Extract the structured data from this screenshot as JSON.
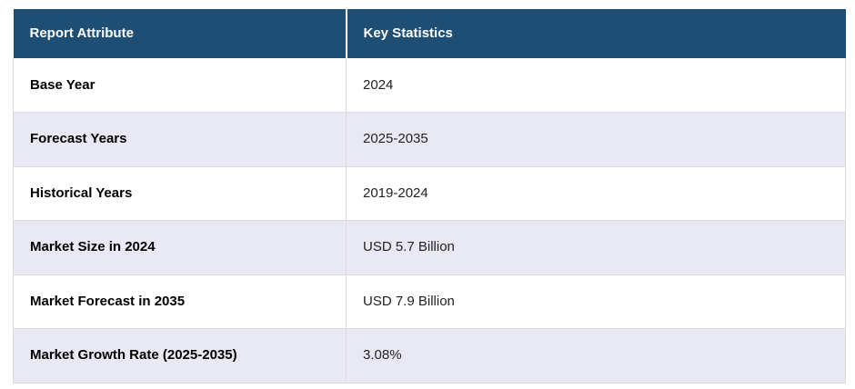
{
  "theme": {
    "page_bg": "#FFFFFF",
    "header_bg": "#1F4E74",
    "header_text": "#FFFFFF",
    "header_divider": "#FFFFFF",
    "row_bg": "#FFFFFF",
    "row_alt_bg": "#E8E9F4",
    "border": "#DBDBDB",
    "attribute_text": "#000000",
    "value_text": "#222222"
  },
  "table": {
    "columns": [
      {
        "label": "Report Attribute"
      },
      {
        "label": "Key Statistics"
      }
    ],
    "rows": [
      {
        "attribute": "Base Year",
        "value": "2024"
      },
      {
        "attribute": "Forecast Years",
        "value": "2025-2035"
      },
      {
        "attribute": "Historical Years",
        "value": "2019-2024"
      },
      {
        "attribute": "Market Size in 2024",
        "value": "USD 5.7 Billion"
      },
      {
        "attribute": "Market Forecast in 2035",
        "value": "USD 7.9 Billion"
      },
      {
        "attribute": "Market Growth Rate (2025-2035)",
        "value": "3.08%"
      }
    ]
  }
}
